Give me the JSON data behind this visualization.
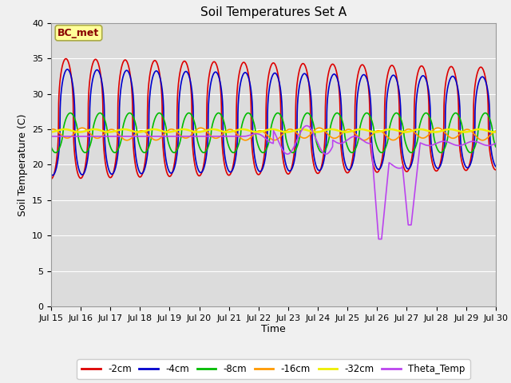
{
  "title": "Soil Temperatures Set A",
  "xlabel": "Time",
  "ylabel": "Soil Temperature (C)",
  "ylim": [
    0,
    40
  ],
  "yticks": [
    0,
    5,
    10,
    15,
    20,
    25,
    30,
    35,
    40
  ],
  "xtick_labels": [
    "Jul 15",
    "Jul 16",
    "Jul 17",
    "Jul 18",
    "Jul 19",
    "Jul 20",
    "Jul 21",
    "Jul 22",
    "Jul 23",
    "Jul 24",
    "Jul 25",
    "Jul 26",
    "Jul 27",
    "Jul 28",
    "Jul 29",
    "Jul 30"
  ],
  "annotation_text": "BC_met",
  "series_colors": {
    "-2cm": "#dd0000",
    "-4cm": "#0000cc",
    "-8cm": "#00bb00",
    "-16cm": "#ff9900",
    "-32cm": "#eeee00",
    "Theta_Temp": "#bb44ee"
  },
  "bg_color": "#dcdcdc",
  "grid_color": "#ffffff",
  "title_fontsize": 11,
  "label_fontsize": 9,
  "tick_fontsize": 8
}
